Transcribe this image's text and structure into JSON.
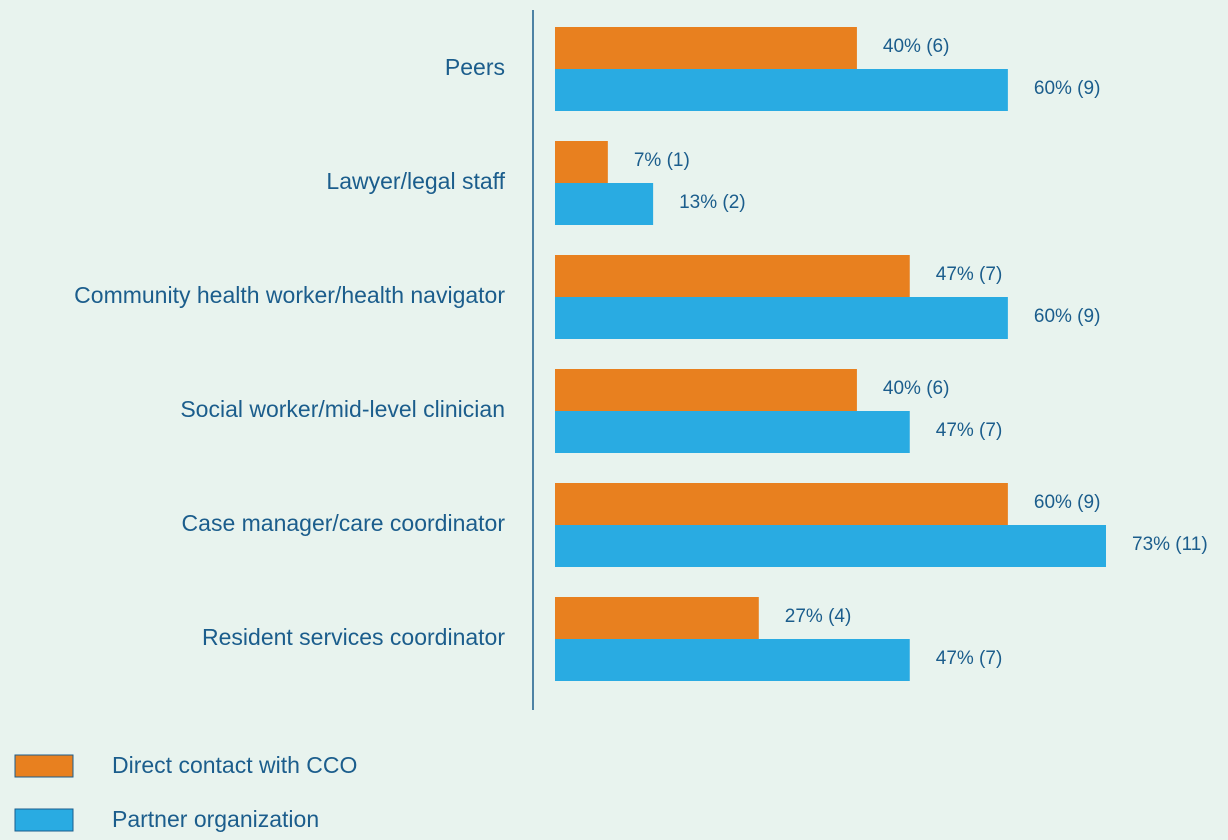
{
  "chart_data": {
    "type": "hbar",
    "categories": [
      "Peers",
      "Lawyer/legal staff",
      "Community health worker/health navigator",
      "Social worker/mid-level clinician",
      "Case manager/care coordinator",
      "Resident services coordinator"
    ],
    "series": [
      {
        "name": "Direct contact with CCO",
        "color": "#e8801f",
        "values": [
          40,
          7,
          47,
          40,
          60,
          27
        ],
        "value_labels": [
          "40% (6)",
          "7% (1)",
          "47% (7)",
          "40% (6)",
          "60% (9)",
          "27% (4)"
        ]
      },
      {
        "name": "Partner organization",
        "color": "#29abe2",
        "values": [
          60,
          13,
          60,
          47,
          73,
          47
        ],
        "value_labels": [
          "60% (9)",
          "13% (2)",
          "60% (9)",
          "47% (7)",
          "73% (11)",
          "47% (7)"
        ]
      }
    ],
    "legend": "bottom-left"
  }
}
